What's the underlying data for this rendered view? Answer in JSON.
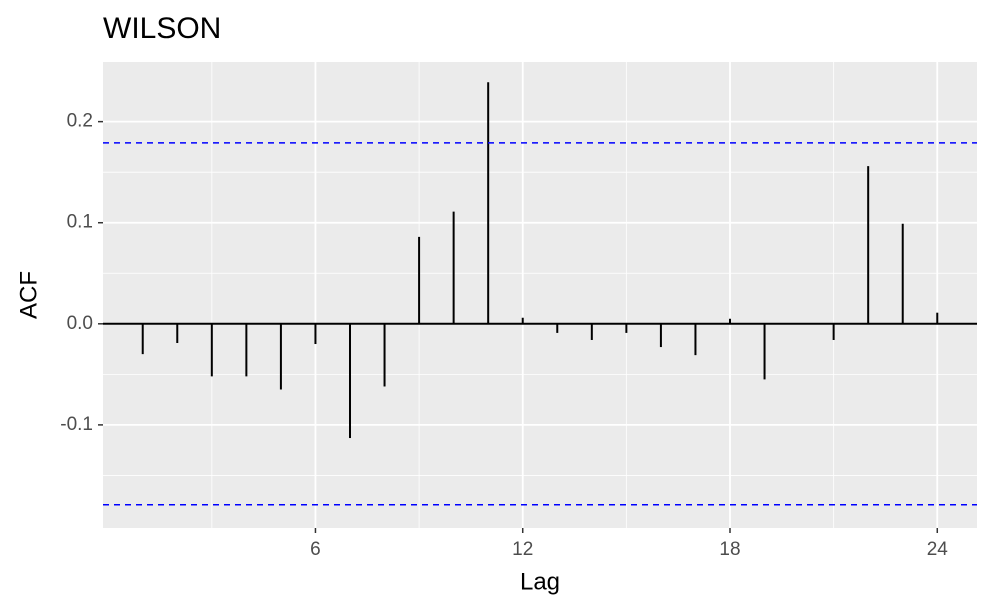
{
  "chart_data": {
    "type": "acf",
    "title": "WILSON",
    "x_label": "Lag",
    "y_label": "ACF",
    "x": [
      1,
      2,
      3,
      4,
      5,
      6,
      7,
      8,
      9,
      10,
      11,
      12,
      13,
      14,
      15,
      16,
      17,
      18,
      19,
      20,
      21,
      22,
      23,
      24
    ],
    "values": [
      -0.03,
      -0.019,
      -0.052,
      -0.052,
      -0.065,
      -0.02,
      -0.113,
      -0.062,
      0.086,
      0.111,
      0.239,
      0.006,
      -0.009,
      -0.016,
      -0.009,
      -0.023,
      -0.031,
      0.005,
      -0.055,
      0.0,
      -0.016,
      0.156,
      0.099,
      0.011
    ],
    "color": "#000000",
    "ci": [
      0.179,
      -0.179
    ],
    "ci_color": "#0000ff",
    "xlim": [
      -0.15,
      25.15
    ],
    "xticks": [
      6,
      12,
      18,
      24
    ],
    "xminor": [
      3,
      9,
      15,
      21
    ],
    "ylim": [
      -0.202,
      0.259
    ],
    "yticks": [
      -0.1,
      {
        "value": 0,
        "label": "0.0"
      },
      0.1,
      0.2
    ],
    "yminor": [
      -0.15,
      -0.05,
      0.05,
      0.15
    ],
    "grid": true
  }
}
